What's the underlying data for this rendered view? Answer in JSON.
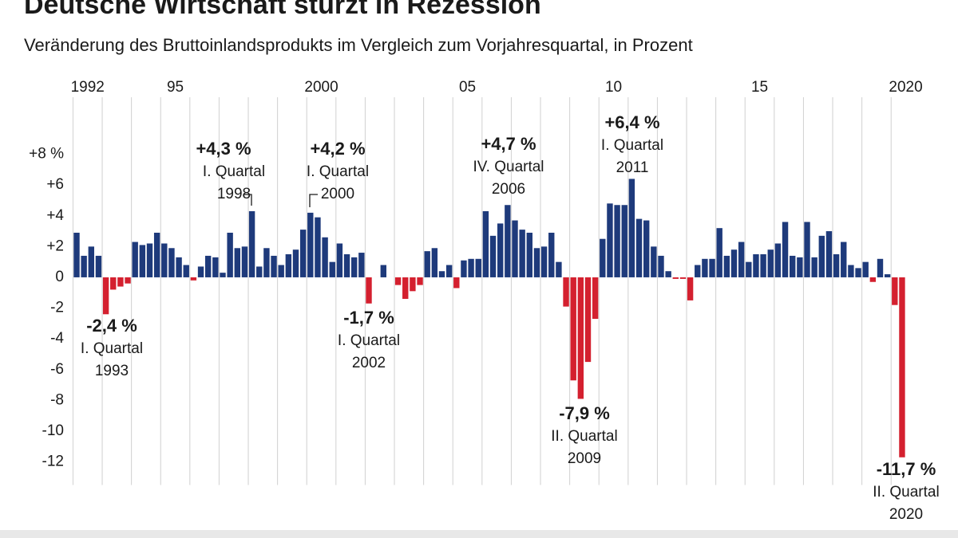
{
  "chart_data": {
    "type": "bar",
    "title": "Deutsche Wirtschaft stürzt in Rezession",
    "subtitle": "Veränderung des Bruttoinlandsprodukts im Vergleich zum Vorjahresquartal, in Prozent",
    "categories": [
      "1992",
      null,
      null,
      null,
      null,
      null,
      null,
      null,
      null,
      null,
      null,
      null,
      "95",
      null,
      null,
      null,
      null,
      null,
      null,
      null,
      null,
      null,
      null,
      null,
      null,
      null,
      null,
      null,
      null,
      null,
      null,
      null,
      "2000",
      null,
      null,
      null,
      null,
      null,
      null,
      null,
      null,
      null,
      null,
      null,
      null,
      null,
      null,
      null,
      null,
      null,
      null,
      null,
      "05",
      null,
      null,
      null,
      null,
      null,
      null,
      null,
      null,
      null,
      null,
      null,
      null,
      null,
      null,
      null,
      null,
      null,
      null,
      null,
      "10",
      null,
      null,
      null,
      null,
      null,
      null,
      null,
      null,
      null,
      null,
      null,
      null,
      null,
      null,
      null,
      null,
      null,
      null,
      null,
      "15",
      null,
      null,
      null,
      null,
      null,
      null,
      null,
      null,
      null,
      null,
      null,
      null,
      null,
      null,
      null,
      null,
      null,
      null,
      null,
      "2020",
      null
    ],
    "values": [
      2.9,
      1.4,
      2.0,
      1.4,
      -2.4,
      -0.8,
      -0.6,
      -0.4,
      2.3,
      2.1,
      2.2,
      2.9,
      2.2,
      1.9,
      1.3,
      0.8,
      -0.2,
      0.7,
      1.4,
      1.3,
      0.3,
      2.9,
      1.9,
      2.0,
      4.3,
      0.7,
      1.9,
      1.4,
      0.8,
      1.5,
      1.8,
      3.1,
      4.2,
      3.9,
      2.6,
      1.0,
      2.2,
      1.5,
      1.3,
      1.6,
      -1.7,
      0.0,
      0.8,
      0.0,
      -0.5,
      -1.4,
      -0.9,
      -0.5,
      1.7,
      1.9,
      0.4,
      0.8,
      -0.7,
      1.1,
      1.2,
      1.2,
      4.3,
      2.7,
      3.5,
      4.7,
      3.7,
      3.1,
      2.9,
      1.9,
      2.0,
      2.9,
      1.0,
      -1.9,
      -6.7,
      -7.9,
      -5.5,
      -2.7,
      2.5,
      4.8,
      4.7,
      4.7,
      6.4,
      3.8,
      3.7,
      2.0,
      1.4,
      0.4,
      -0.1,
      -0.1,
      -1.5,
      0.8,
      1.2,
      1.2,
      3.2,
      1.4,
      1.8,
      2.3,
      1.0,
      1.5,
      1.5,
      1.8,
      2.2,
      3.6,
      1.4,
      1.3,
      3.6,
      1.3,
      2.7,
      3.0,
      1.5,
      2.3,
      0.8,
      0.6,
      1.0,
      -0.3,
      1.2,
      0.2,
      -1.8,
      -11.7
    ],
    "value_labels": [
      null,
      null,
      null,
      null,
      "-2,4 %",
      null,
      null,
      null,
      null,
      null,
      null,
      null,
      null,
      null,
      null,
      null,
      null,
      null,
      null,
      null,
      null,
      null,
      null,
      null,
      "+4,3 %",
      null,
      null,
      null,
      null,
      null,
      null,
      null,
      "+4,2 %",
      null,
      null,
      null,
      null,
      null,
      null,
      null,
      "-1,7 %",
      null,
      null,
      null,
      null,
      null,
      null,
      null,
      null,
      null,
      null,
      null,
      null,
      null,
      null,
      null,
      null,
      null,
      null,
      "+4,7 %",
      null,
      null,
      null,
      null,
      null,
      null,
      null,
      null,
      null,
      "-7,9 %",
      null,
      null,
      null,
      null,
      null,
      null,
      "+6,4 %",
      null,
      null,
      null,
      null,
      null,
      null,
      null,
      null,
      null,
      null,
      null,
      null,
      null,
      null,
      null,
      null,
      null,
      null,
      null,
      null,
      null,
      null,
      null,
      null,
      null,
      null,
      null,
      null,
      null,
      null,
      null,
      null,
      null,
      null,
      null,
      null,
      "-11,7 %"
    ],
    "annotations": [
      null,
      null,
      null,
      null,
      [
        "I. Quartal",
        "1993"
      ],
      null,
      null,
      null,
      null,
      null,
      null,
      null,
      null,
      null,
      null,
      null,
      null,
      null,
      null,
      null,
      null,
      null,
      null,
      null,
      [
        "I. Quartal",
        "1998"
      ],
      null,
      null,
      null,
      null,
      null,
      null,
      null,
      [
        "I. Quartal",
        "2000"
      ],
      null,
      null,
      null,
      null,
      null,
      null,
      null,
      [
        "I. Quartal",
        "2002"
      ],
      null,
      null,
      null,
      null,
      null,
      null,
      null,
      null,
      null,
      null,
      null,
      null,
      null,
      null,
      null,
      null,
      null,
      null,
      [
        "IV. Quartal",
        "2006"
      ],
      null,
      null,
      null,
      null,
      null,
      null,
      null,
      null,
      null,
      [
        "II. Quartal",
        "2009"
      ],
      null,
      null,
      null,
      null,
      null,
      null,
      [
        "I. Quartal",
        "2011"
      ],
      null,
      null,
      null,
      null,
      null,
      null,
      null,
      null,
      null,
      null,
      null,
      null,
      null,
      null,
      null,
      null,
      null,
      null,
      null,
      null,
      null,
      null,
      null,
      null,
      null,
      null,
      null,
      null,
      null,
      null,
      null,
      null,
      null,
      null,
      null,
      null,
      [
        "II. Quartal",
        "2020"
      ]
    ],
    "positive_color": "#1e3a7b",
    "negative_color": "#d4202f",
    "ylim": [
      -13.5,
      11.5
    ],
    "yticks": [
      {
        "value": 8,
        "label": "+8 %"
      },
      {
        "value": 6,
        "label": "+6"
      },
      {
        "value": 4,
        "label": "+4"
      },
      {
        "value": 2,
        "label": "+2"
      },
      0,
      -2,
      -4,
      -6,
      -8,
      -10,
      -12
    ]
  }
}
